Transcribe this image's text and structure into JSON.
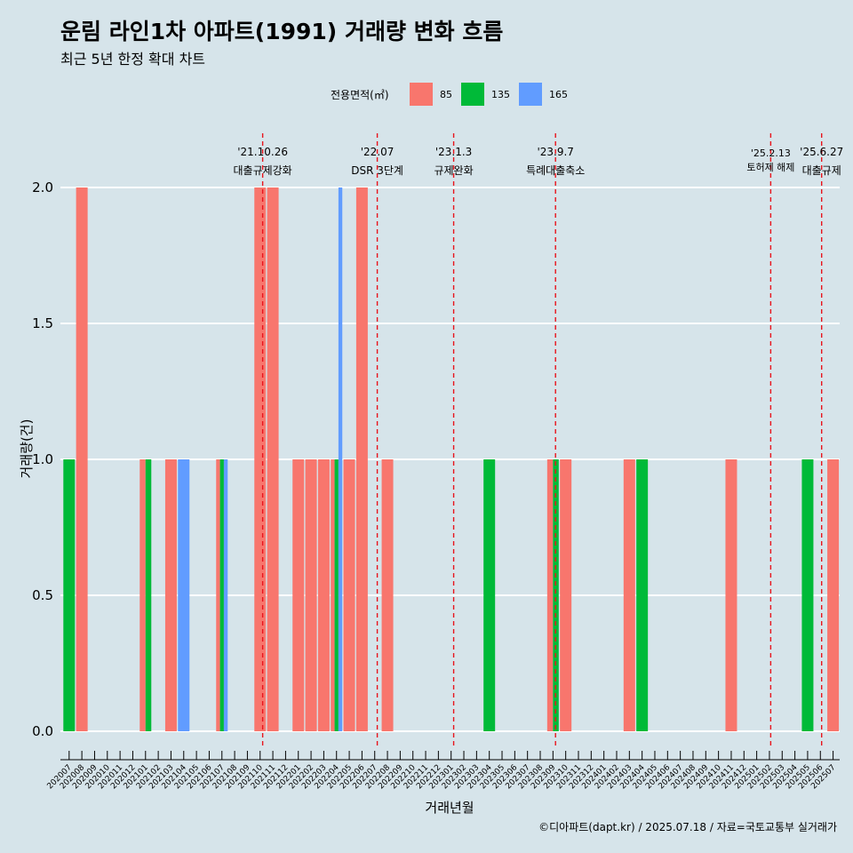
{
  "header": {
    "title": "운림 라인1차 아파트(1991) 거래량 변화 흐름",
    "subtitle": "최근 5년 한정 확대 차트"
  },
  "legend": {
    "title": "전용면적(㎡)",
    "items": [
      {
        "label": "85",
        "color": "#f8766d"
      },
      {
        "label": "135",
        "color": "#00ba38"
      },
      {
        "label": "165",
        "color": "#619cff"
      }
    ]
  },
  "footer": "©디아파트(dapt.kr) / 2025.07.18 / 자료=국토교통부 실거래가",
  "chart_data": {
    "type": "bar",
    "xlabel": "거래년월",
    "ylabel": "거래량(건)",
    "ylim": [
      0,
      2
    ],
    "yticks": [
      "0.0",
      "0.5",
      "1.0",
      "1.5",
      "2.0"
    ],
    "grid": "horizontal",
    "legend_position": "top",
    "categories": [
      "202007",
      "202008",
      "202009",
      "202010",
      "202011",
      "202012",
      "202101",
      "202102",
      "202103",
      "202104",
      "202105",
      "202106",
      "202107",
      "202108",
      "202109",
      "202110",
      "202111",
      "202112",
      "202201",
      "202202",
      "202203",
      "202204",
      "202205",
      "202206",
      "202207",
      "202208",
      "202209",
      "202210",
      "202211",
      "202212",
      "202301",
      "202302",
      "202303",
      "202304",
      "202305",
      "202306",
      "202307",
      "202308",
      "202309",
      "202310",
      "202311",
      "202312",
      "202401",
      "202402",
      "202403",
      "202404",
      "202405",
      "202406",
      "202407",
      "202408",
      "202409",
      "202410",
      "202411",
      "202412",
      "202501",
      "202502",
      "202503",
      "202504",
      "202505",
      "202506",
      "202507"
    ],
    "bars": [
      {
        "x": "202007",
        "series": "135",
        "value": 1
      },
      {
        "x": "202008",
        "series": "85",
        "value": 2
      },
      {
        "x": "202101",
        "series": "85",
        "value": 1
      },
      {
        "x": "202101",
        "series": "135",
        "value": 1
      },
      {
        "x": "202103",
        "series": "85",
        "value": 1
      },
      {
        "x": "202104",
        "series": "165",
        "value": 1
      },
      {
        "x": "202107",
        "series": "85",
        "value": 1
      },
      {
        "x": "202107",
        "series": "135",
        "value": 1
      },
      {
        "x": "202107",
        "series": "165",
        "value": 1
      },
      {
        "x": "202110",
        "series": "85",
        "value": 2
      },
      {
        "x": "202111",
        "series": "85",
        "value": 2
      },
      {
        "x": "202201",
        "series": "85",
        "value": 1
      },
      {
        "x": "202202",
        "series": "85",
        "value": 1
      },
      {
        "x": "202203",
        "series": "85",
        "value": 1
      },
      {
        "x": "202204",
        "series": "85",
        "value": 1
      },
      {
        "x": "202204",
        "series": "135",
        "value": 1
      },
      {
        "x": "202204",
        "series": "165",
        "value": 2
      },
      {
        "x": "202205",
        "series": "85",
        "value": 1
      },
      {
        "x": "202206",
        "series": "85",
        "value": 2
      },
      {
        "x": "202208",
        "series": "85",
        "value": 1
      },
      {
        "x": "202304",
        "series": "135",
        "value": 1
      },
      {
        "x": "202309",
        "series": "85",
        "value": 1
      },
      {
        "x": "202309",
        "series": "135",
        "value": 1
      },
      {
        "x": "202310",
        "series": "85",
        "value": 1
      },
      {
        "x": "202403",
        "series": "85",
        "value": 1
      },
      {
        "x": "202404",
        "series": "135",
        "value": 1
      },
      {
        "x": "202411",
        "series": "85",
        "value": 1
      },
      {
        "x": "202505",
        "series": "135",
        "value": 1
      },
      {
        "x": "202507",
        "series": "85",
        "value": 1
      }
    ],
    "annotations": [
      {
        "x": 15.2,
        "date": "'21.10.26",
        "text": "대출규제강화",
        "small": false
      },
      {
        "x": 24.2,
        "date": "'22.07",
        "text": "DSR 3단계",
        "small": false
      },
      {
        "x": 30.2,
        "date": "'23.1.3",
        "text": "규제완화",
        "small": false
      },
      {
        "x": 38.2,
        "date": "'23.9.7",
        "text": "특례대출축소",
        "small": false
      },
      {
        "x": 55.1,
        "date": "'25.2.13",
        "text": "토허제 해제",
        "small": true
      },
      {
        "x": 59.1,
        "date": "'25.6.27",
        "text": "대출규제",
        "small": false
      }
    ]
  }
}
